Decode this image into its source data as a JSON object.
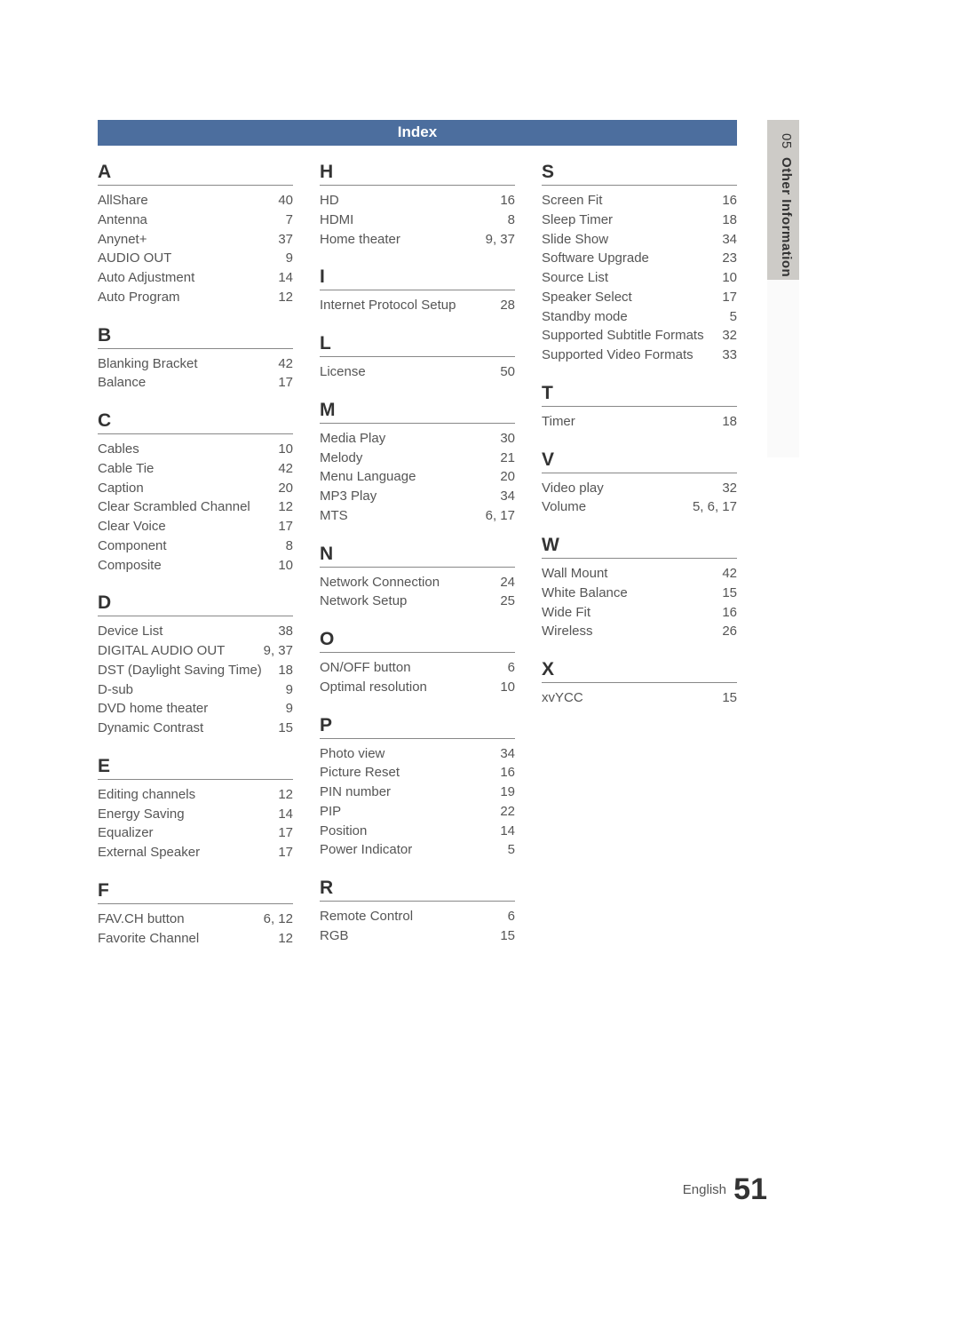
{
  "header": {
    "title": "Index"
  },
  "side_tab": {
    "num": "05",
    "label": "Other Information"
  },
  "footer": {
    "lang": "English",
    "page": "51"
  },
  "columns": [
    [
      {
        "letter": "A",
        "entries": [
          {
            "term": "AllShare",
            "pages": "40"
          },
          {
            "term": "Antenna",
            "pages": "7"
          },
          {
            "term": "Anynet+",
            "pages": "37"
          },
          {
            "term": "AUDIO OUT",
            "pages": "9"
          },
          {
            "term": "Auto Adjustment",
            "pages": "14"
          },
          {
            "term": "Auto Program",
            "pages": "12"
          }
        ]
      },
      {
        "letter": "B",
        "entries": [
          {
            "term": "Blanking Bracket",
            "pages": "42"
          },
          {
            "term": "Balance",
            "pages": "17"
          }
        ]
      },
      {
        "letter": "C",
        "entries": [
          {
            "term": "Cables",
            "pages": "10"
          },
          {
            "term": "Cable Tie",
            "pages": "42"
          },
          {
            "term": "Caption",
            "pages": "20"
          },
          {
            "term": "Clear Scrambled Channel",
            "pages": "12"
          },
          {
            "term": "Clear Voice",
            "pages": "17"
          },
          {
            "term": "Component",
            "pages": "8"
          },
          {
            "term": "Composite",
            "pages": "10"
          }
        ]
      },
      {
        "letter": "D",
        "entries": [
          {
            "term": "Device List",
            "pages": "38"
          },
          {
            "term": "DIGITAL AUDIO OUT",
            "pages": "9, 37"
          },
          {
            "term": "DST (Daylight Saving Time)",
            "pages": "18"
          },
          {
            "term": "D-sub",
            "pages": "9"
          },
          {
            "term": "DVD home theater",
            "pages": "9"
          },
          {
            "term": "Dynamic Contrast",
            "pages": "15"
          }
        ]
      },
      {
        "letter": "E",
        "entries": [
          {
            "term": "Editing channels",
            "pages": "12"
          },
          {
            "term": "Energy Saving",
            "pages": "14"
          },
          {
            "term": "Equalizer",
            "pages": "17"
          },
          {
            "term": "External Speaker",
            "pages": "17"
          }
        ]
      },
      {
        "letter": "F",
        "entries": [
          {
            "term": "FAV.CH button",
            "pages": "6, 12"
          },
          {
            "term": "Favorite Channel",
            "pages": "12"
          }
        ]
      }
    ],
    [
      {
        "letter": "H",
        "entries": [
          {
            "term": "HD",
            "pages": "16"
          },
          {
            "term": "HDMI",
            "pages": "8"
          },
          {
            "term": "Home theater",
            "pages": "9, 37"
          }
        ]
      },
      {
        "letter": "I",
        "entries": [
          {
            "term": "Internet Protocol Setup",
            "pages": "28"
          }
        ]
      },
      {
        "letter": "L",
        "entries": [
          {
            "term": "License",
            "pages": "50"
          }
        ]
      },
      {
        "letter": "M",
        "entries": [
          {
            "term": "Media Play",
            "pages": "30"
          },
          {
            "term": "Melody",
            "pages": "21"
          },
          {
            "term": "Menu Language",
            "pages": "20"
          },
          {
            "term": "MP3 Play",
            "pages": "34"
          },
          {
            "term": "MTS",
            "pages": "6, 17"
          }
        ]
      },
      {
        "letter": "N",
        "entries": [
          {
            "term": "Network Connection",
            "pages": "24"
          },
          {
            "term": "Network Setup",
            "pages": "25"
          }
        ]
      },
      {
        "letter": "O",
        "entries": [
          {
            "term": "ON/OFF button",
            "pages": "6"
          },
          {
            "term": "Optimal resolution",
            "pages": "10"
          }
        ]
      },
      {
        "letter": "P",
        "entries": [
          {
            "term": "Photo view",
            "pages": "34"
          },
          {
            "term": "Picture Reset",
            "pages": "16"
          },
          {
            "term": "PIN number",
            "pages": "19"
          },
          {
            "term": "PIP",
            "pages": "22"
          },
          {
            "term": "Position",
            "pages": "14"
          },
          {
            "term": "Power Indicator",
            "pages": "5"
          }
        ]
      },
      {
        "letter": "R",
        "entries": [
          {
            "term": "Remote Control",
            "pages": "6"
          },
          {
            "term": "RGB",
            "pages": "15"
          }
        ]
      }
    ],
    [
      {
        "letter": "S",
        "entries": [
          {
            "term": "Screen Fit",
            "pages": "16"
          },
          {
            "term": "Sleep Timer",
            "pages": "18"
          },
          {
            "term": "Slide Show",
            "pages": "34"
          },
          {
            "term": "Software Upgrade",
            "pages": "23"
          },
          {
            "term": "Source List",
            "pages": "10"
          },
          {
            "term": "Speaker Select",
            "pages": "17"
          },
          {
            "term": "Standby mode",
            "pages": "5"
          },
          {
            "term": "Supported Subtitle Formats",
            "pages": "32"
          },
          {
            "term": "Supported Video Formats",
            "pages": "33"
          }
        ]
      },
      {
        "letter": "T",
        "entries": [
          {
            "term": "Timer",
            "pages": "18"
          }
        ]
      },
      {
        "letter": "V",
        "entries": [
          {
            "term": "Video play",
            "pages": "32"
          },
          {
            "term": "Volume",
            "pages": "5, 6, 17"
          }
        ]
      },
      {
        "letter": "W",
        "entries": [
          {
            "term": "Wall Mount",
            "pages": "42"
          },
          {
            "term": "White Balance",
            "pages": "15"
          },
          {
            "term": "Wide Fit",
            "pages": "16"
          },
          {
            "term": "Wireless",
            "pages": "26"
          }
        ]
      },
      {
        "letter": "X",
        "entries": [
          {
            "term": "xvYCC",
            "pages": "15"
          }
        ]
      }
    ]
  ]
}
